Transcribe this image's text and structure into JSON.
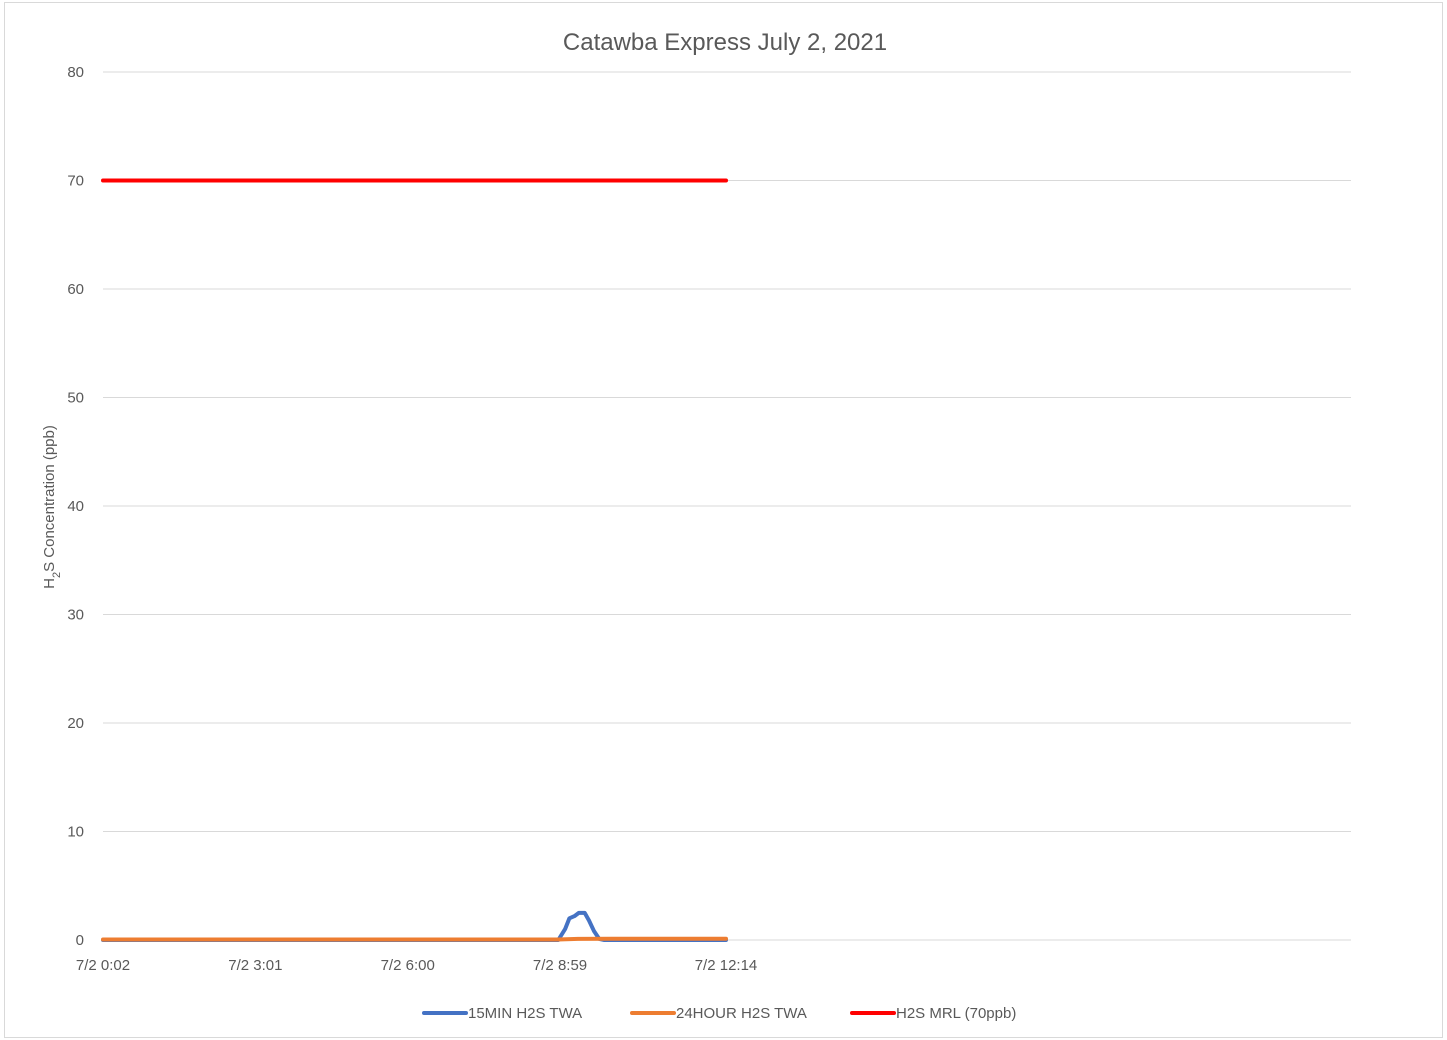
{
  "chart_data": {
    "type": "line",
    "title": "Catawba Express July 2, 2021",
    "xlabel": "",
    "ylabel_main": "H",
    "ylabel_sub": "2",
    "ylabel_rest": "S Concentration (ppb)",
    "ylim": [
      0,
      80
    ],
    "yticks": [
      0,
      10,
      20,
      30,
      40,
      50,
      60,
      70,
      80
    ],
    "xlim_minutes": [
      2,
      734
    ],
    "xticks": [
      {
        "label": "7/2 0:02",
        "t": 2
      },
      {
        "label": "7/2 3:01",
        "t": 181
      },
      {
        "label": "7/2 6:00",
        "t": 360
      },
      {
        "label": "7/2 8:59",
        "t": 539
      },
      {
        "label": "7/2 12:14",
        "t": 734
      }
    ],
    "grid": true,
    "legend_position": "bottom",
    "series": [
      {
        "name": "15MIN H2S TWA",
        "color": "#4472C4",
        "points": [
          [
            2,
            0
          ],
          [
            537,
            0
          ],
          [
            545,
            1.0
          ],
          [
            550,
            2.0
          ],
          [
            556,
            2.2
          ],
          [
            561,
            2.5
          ],
          [
            568,
            2.5
          ],
          [
            573,
            1.8
          ],
          [
            579,
            0.8
          ],
          [
            585,
            0.1
          ],
          [
            591,
            0
          ],
          [
            734,
            0
          ]
        ]
      },
      {
        "name": "24HOUR H2S TWA",
        "color": "#ED7D31",
        "points": [
          [
            2,
            0.05
          ],
          [
            537,
            0.05
          ],
          [
            560,
            0.1
          ],
          [
            600,
            0.12
          ],
          [
            734,
            0.12
          ]
        ]
      },
      {
        "name": "H2S MRL (70ppb)",
        "color": "#FF0000",
        "points": [
          [
            2,
            70
          ],
          [
            734,
            70
          ]
        ]
      }
    ]
  }
}
